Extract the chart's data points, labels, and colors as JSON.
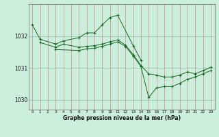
{
  "title": "Graphe pression niveau de la mer (hPa)",
  "background_color": "#cceedd",
  "grid_color_h": "#99ccbb",
  "grid_color_v": "#cc6666",
  "line_color": "#1a6620",
  "ylim": [
    1029.7,
    1033.0
  ],
  "yticks": [
    1030,
    1031,
    1032
  ],
  "xticks": [
    0,
    1,
    2,
    3,
    4,
    5,
    6,
    7,
    8,
    9,
    10,
    11,
    12,
    13,
    14,
    15,
    16,
    17,
    18,
    19,
    20,
    21,
    22,
    23
  ],
  "series1_x": [
    0,
    1,
    3,
    4,
    6,
    7,
    8,
    9,
    10,
    11,
    13,
    14
  ],
  "series1_y": [
    1032.35,
    1031.9,
    1031.75,
    1031.85,
    1031.95,
    1032.1,
    1032.1,
    1032.35,
    1032.58,
    1032.65,
    1031.7,
    1031.25
  ],
  "series2_x": [
    1,
    3,
    4,
    6,
    7,
    8,
    9,
    10,
    11,
    12,
    13,
    14,
    15,
    16,
    17,
    18,
    19,
    20,
    21,
    22,
    23
  ],
  "series2_y": [
    1031.8,
    1031.65,
    1031.75,
    1031.65,
    1031.68,
    1031.7,
    1031.75,
    1031.82,
    1031.88,
    1031.72,
    1031.42,
    1031.08,
    1030.82,
    1030.78,
    1030.72,
    1030.72,
    1030.78,
    1030.88,
    1030.82,
    1030.92,
    1031.02
  ],
  "series3_x": [
    3,
    6,
    7,
    8,
    9,
    10,
    11,
    12,
    13,
    14,
    15,
    16,
    17,
    18,
    19,
    20,
    21,
    22,
    23
  ],
  "series3_y": [
    1031.58,
    1031.55,
    1031.6,
    1031.62,
    1031.68,
    1031.75,
    1031.82,
    1031.68,
    1031.38,
    1031.05,
    1030.08,
    1030.38,
    1030.42,
    1030.42,
    1030.52,
    1030.65,
    1030.72,
    1030.82,
    1030.92
  ]
}
